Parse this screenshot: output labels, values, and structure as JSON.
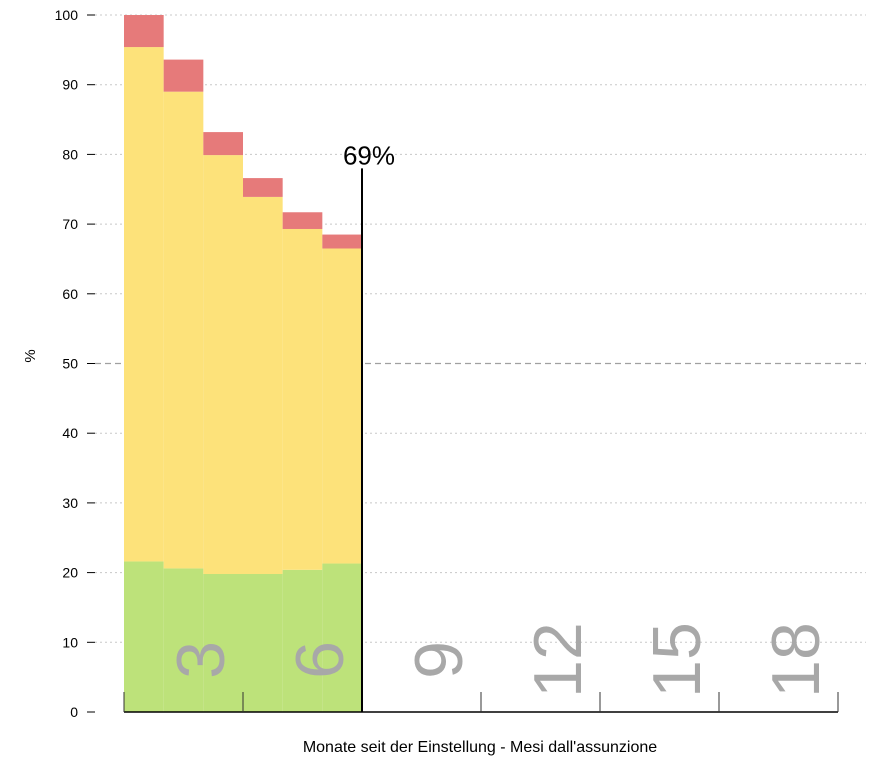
{
  "chart_data": {
    "type": "area",
    "title": "",
    "xlabel": "Monate seit der Einstellung - Mesi dall'assunzione",
    "ylabel": "%",
    "ylim": [
      0,
      100
    ],
    "yticks": [
      0,
      10,
      20,
      30,
      40,
      50,
      60,
      70,
      80,
      90,
      100
    ],
    "xlim": [
      0,
      18
    ],
    "big_x_labels": [
      "3",
      "6",
      "9",
      "12",
      "15",
      "18"
    ],
    "months": [
      1,
      2,
      3,
      4,
      5,
      6
    ],
    "series": [
      {
        "key": "green",
        "values": [
          21.6,
          20.6,
          19.8,
          19.8,
          20.4,
          21.3
        ]
      },
      {
        "key": "yellow",
        "values": [
          73.8,
          68.4,
          60.1,
          54.1,
          48.9,
          45.2
        ]
      },
      {
        "key": "red",
        "values": [
          4.6,
          4.6,
          3.3,
          2.7,
          2.4,
          2.0
        ]
      }
    ],
    "colors": {
      "green": "#bde27a",
      "yellow": "#fde27a",
      "red": "#e67a7a",
      "big_label": "#a8a8a8",
      "grid": "#c8c8c8",
      "axis": "#000000"
    },
    "reference_line": {
      "x": 6,
      "label": "69%",
      "value": 69
    },
    "grid": true,
    "midline_value": 50
  }
}
